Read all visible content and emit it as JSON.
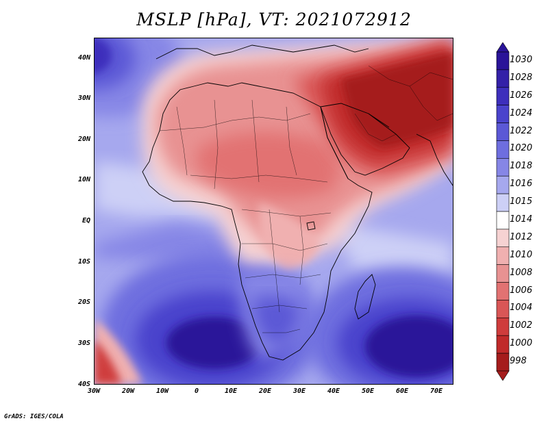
{
  "title": "MSLP [hPa], VT: 2021072912",
  "credit": "GrADS: IGES/COLA",
  "map": {
    "region": "Africa",
    "lon_range": [
      -30,
      75
    ],
    "lat_range": [
      -40,
      45
    ],
    "lat_ticks": [
      {
        "value": 40,
        "label": "40N"
      },
      {
        "value": 30,
        "label": "30N"
      },
      {
        "value": 20,
        "label": "20N"
      },
      {
        "value": 10,
        "label": "10N"
      },
      {
        "value": 0,
        "label": "EQ"
      },
      {
        "value": -10,
        "label": "10S"
      },
      {
        "value": -20,
        "label": "20S"
      },
      {
        "value": -30,
        "label": "30S"
      },
      {
        "value": -40,
        "label": "40S"
      }
    ],
    "lon_ticks": [
      {
        "value": -30,
        "label": "30W"
      },
      {
        "value": -20,
        "label": "20W"
      },
      {
        "value": -10,
        "label": "10W"
      },
      {
        "value": 0,
        "label": "0"
      },
      {
        "value": 10,
        "label": "10E"
      },
      {
        "value": 20,
        "label": "20E"
      },
      {
        "value": 30,
        "label": "30E"
      },
      {
        "value": 40,
        "label": "40E"
      },
      {
        "value": 50,
        "label": "50E"
      },
      {
        "value": 60,
        "label": "60E"
      },
      {
        "value": 70,
        "label": "70E"
      }
    ]
  },
  "colorbar": {
    "levels": [
      {
        "label": "1030",
        "color": "#2a1499"
      },
      {
        "label": "1028",
        "color": "#3320a8"
      },
      {
        "label": "1026",
        "color": "#3d2fbc"
      },
      {
        "label": "1024",
        "color": "#4a43cc"
      },
      {
        "label": "1022",
        "color": "#5b58d6"
      },
      {
        "label": "1020",
        "color": "#6e6edf"
      },
      {
        "label": "1018",
        "color": "#8686e6"
      },
      {
        "label": "1016",
        "color": "#a6a8ee"
      },
      {
        "label": "1015",
        "color": "#cdd0f6"
      },
      {
        "label": "1014",
        "color": "#ffffff"
      },
      {
        "label": "1012",
        "color": "#f6d2d2"
      },
      {
        "label": "1010",
        "color": "#f0b0b0"
      },
      {
        "label": "1008",
        "color": "#e89292"
      },
      {
        "label": "1006",
        "color": "#e27272"
      },
      {
        "label": "1004",
        "color": "#d95656"
      },
      {
        "label": "1002",
        "color": "#cf3c3c"
      },
      {
        "label": "1000",
        "color": "#c02a2a"
      },
      {
        "label": "998",
        "color": "#a51c1c"
      }
    ],
    "top_color": "#2a1499",
    "bottom_color": "#a51c1c"
  }
}
